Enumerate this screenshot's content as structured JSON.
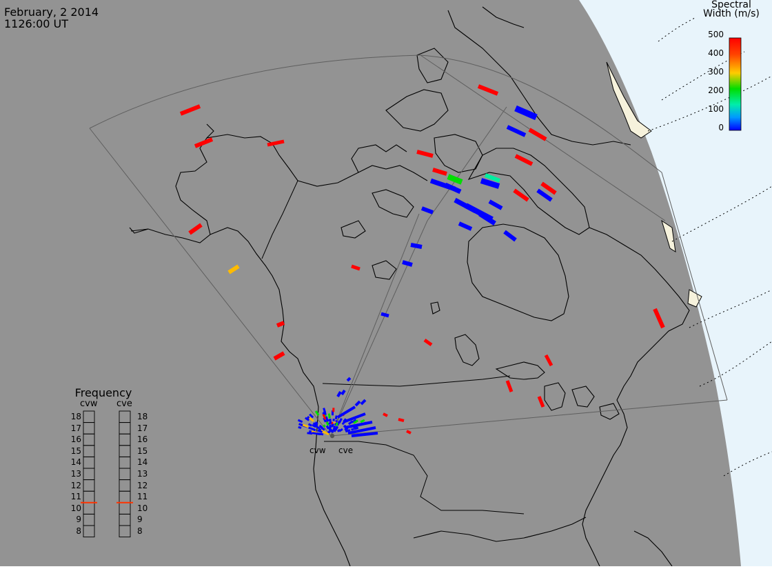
{
  "header": {
    "date": "February, 2 2014",
    "time": "1126:00 UT"
  },
  "colorbar": {
    "title_line1": "Spectral",
    "title_line2": "Width (m/s)",
    "ticks": [
      "500",
      "400",
      "300",
      "200",
      "100",
      "0"
    ],
    "stops": [
      "#ff0000",
      "#ff6600",
      "#ffcc00",
      "#00dd00",
      "#00eeaa",
      "#0099ff",
      "#0000ff"
    ]
  },
  "frequency": {
    "title": "Frequency",
    "left_label": "cvw",
    "right_label": "cve",
    "levels": [
      "18",
      "17",
      "16",
      "15",
      "14",
      "13",
      "12",
      "11",
      "10",
      "9",
      "8"
    ],
    "marker_value": "10.5",
    "marker_color": "#ff3300"
  },
  "radars": {
    "west": "cvw",
    "east": "cve"
  },
  "colors": {
    "map_bg": "#939393",
    "ocean": "#e8f4fb",
    "ice_land": "#f6f2dc",
    "fov_line": "#5e5e5e",
    "high_width": "#ff0000",
    "low_width": "#0000ff"
  }
}
